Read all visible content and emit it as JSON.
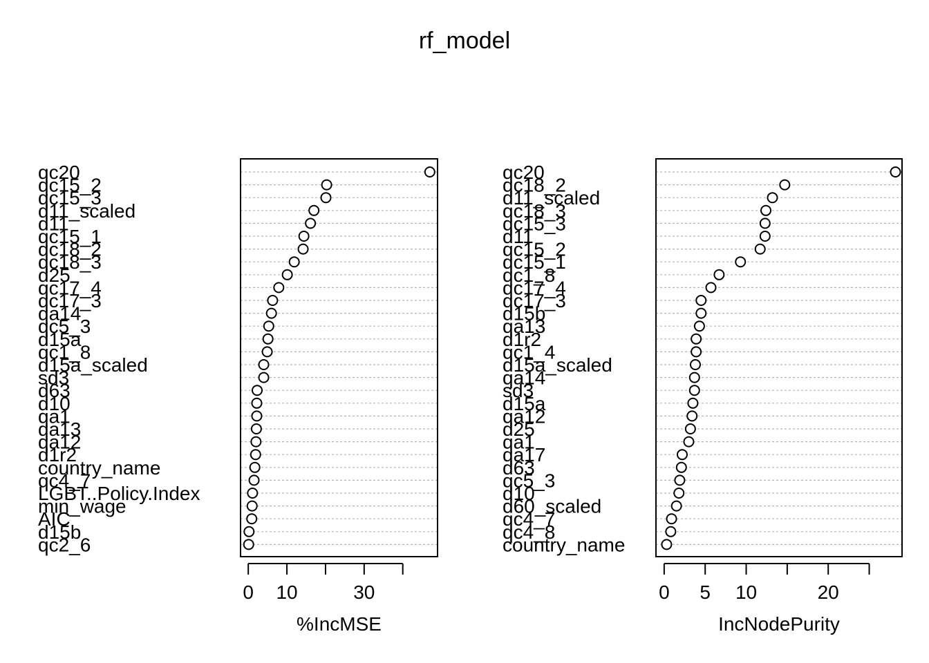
{
  "title": "rf_model",
  "chart_data": [
    {
      "type": "scatter",
      "subtype": "dotchart",
      "xlabel": "%IncMSE",
      "xlim": [
        -2,
        49
      ],
      "xticks": [
        0,
        10,
        20,
        30,
        40
      ],
      "xtick_labels": [
        "0",
        "10",
        "",
        "30",
        ""
      ],
      "grid": true,
      "labels": [
        "qc20",
        "qc15_2",
        "qc15_3",
        "d11_scaled",
        "d11",
        "qc15_1",
        "qc18_2",
        "qc18_3",
        "d25",
        "qc17_4",
        "qc17_3",
        "qa14",
        "qc5_3",
        "d15a",
        "qc1_8",
        "d15a_scaled",
        "sd3",
        "d63",
        "d10",
        "qa1",
        "qa13",
        "qa12",
        "d1r2",
        "country_name",
        "qc4_7",
        "LGBT..Policy.Index",
        "min_wage",
        "AIC",
        "d15b",
        "qc2_6"
      ],
      "values": [
        47.0,
        20.3,
        20.1,
        17.0,
        16.1,
        14.4,
        14.2,
        11.9,
        10.1,
        7.9,
        6.3,
        6.0,
        5.3,
        5.1,
        4.9,
        4.0,
        4.0,
        2.3,
        2.2,
        2.2,
        2.1,
        2.0,
        1.9,
        1.7,
        1.5,
        1.1,
        1.0,
        0.9,
        0.2,
        0.1
      ]
    },
    {
      "type": "scatter",
      "subtype": "dotchart",
      "xlabel": "IncNodePurity",
      "xlim": [
        -1,
        29
      ],
      "xticks": [
        0,
        5,
        10,
        15,
        20,
        25
      ],
      "xtick_labels": [
        "0",
        "5",
        "10",
        "",
        "20",
        ""
      ],
      "grid": true,
      "labels": [
        "qc20",
        "qc18_2",
        "d11_scaled",
        "qc18_3",
        "qc15_3",
        "d11",
        "qc15_2",
        "qc15_1",
        "qc1_8",
        "qc17_4",
        "qc17_3",
        "d15b",
        "qa13",
        "d1r2",
        "qc1_4",
        "d15a_scaled",
        "qa14",
        "sd3",
        "d15a",
        "qa12",
        "d25",
        "qa1",
        "qa17",
        "d63",
        "qc5_3",
        "d10",
        "d60_scaled",
        "qc4_7",
        "qc4_8",
        "country_name"
      ],
      "values": [
        28.2,
        14.7,
        13.2,
        12.4,
        12.3,
        12.3,
        11.7,
        9.3,
        6.7,
        5.7,
        4.5,
        4.5,
        4.3,
        3.9,
        3.9,
        3.8,
        3.7,
        3.7,
        3.5,
        3.4,
        3.2,
        3.0,
        2.2,
        2.1,
        1.9,
        1.8,
        1.5,
        0.9,
        0.8,
        0.3
      ]
    }
  ]
}
